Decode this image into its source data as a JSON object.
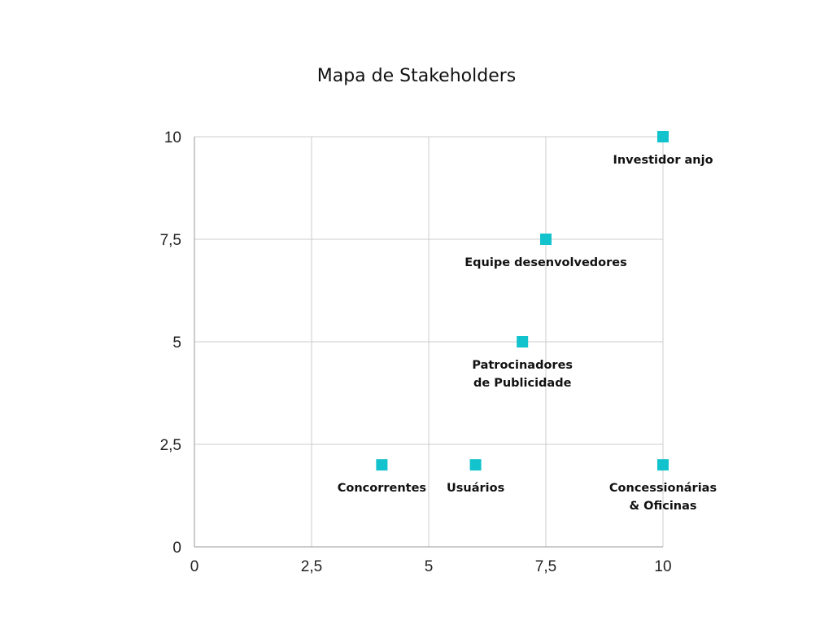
{
  "chart_data": {
    "type": "scatter",
    "title": "Mapa de Stakeholders",
    "xlabel": "",
    "ylabel": "",
    "xlim": [
      0,
      10
    ],
    "ylim": [
      0,
      10
    ],
    "x_ticks": [
      "0",
      "2,5",
      "5",
      "7,5",
      "10"
    ],
    "y_ticks": [
      "0",
      "2,5",
      "5",
      "7,5",
      "10"
    ],
    "grid": true,
    "legend": "none",
    "marker": "square",
    "color": "#12c2cc",
    "points": [
      {
        "label": "Investidor anjo",
        "label_lines": [
          "Investidor anjo"
        ],
        "x": 10,
        "y": 10
      },
      {
        "label": "Equipe desenvolvedores",
        "label_lines": [
          "Equipe desenvolvedores"
        ],
        "x": 7.5,
        "y": 7.5
      },
      {
        "label": "Patrocinadores de Publicidade",
        "label_lines": [
          "Patrocinadores",
          "de Publicidade"
        ],
        "x": 7,
        "y": 5
      },
      {
        "label": "Concorrentes",
        "label_lines": [
          "Concorrentes"
        ],
        "x": 4,
        "y": 2
      },
      {
        "label": "Usuários",
        "label_lines": [
          "Usuários"
        ],
        "x": 6,
        "y": 2
      },
      {
        "label": "Concessionárias & Oficinas",
        "label_lines": [
          "Concessionárias",
          "& Oficinas"
        ],
        "x": 10,
        "y": 2
      }
    ]
  }
}
